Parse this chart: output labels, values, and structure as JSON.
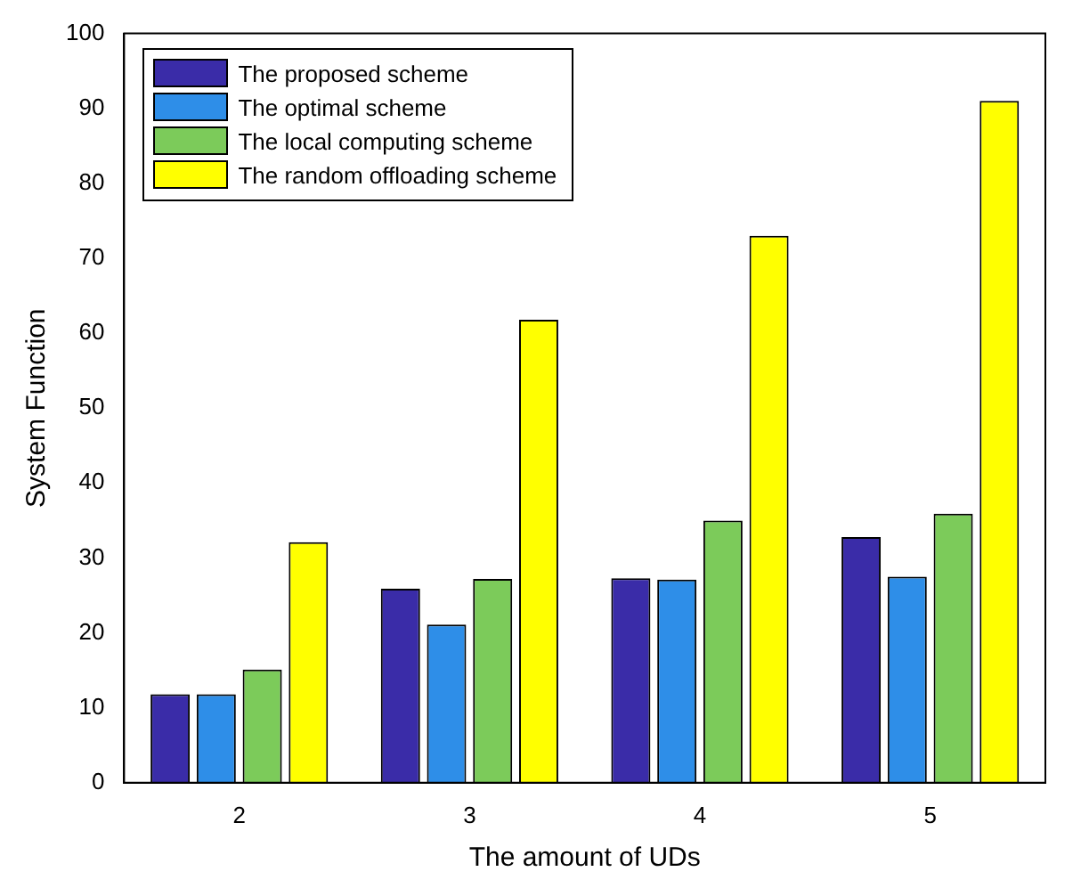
{
  "chart_data": {
    "type": "bar",
    "xlabel": "The amount of UDs",
    "ylabel": "System Function",
    "categories": [
      "2",
      "3",
      "4",
      "5"
    ],
    "series": [
      {
        "name": "The proposed scheme",
        "color": "#3a2ca8",
        "values": [
          11.8,
          25.9,
          27.3,
          32.8
        ]
      },
      {
        "name": "The optimal scheme",
        "color": "#2e8ee8",
        "values": [
          11.8,
          21.1,
          27.1,
          27.5
        ]
      },
      {
        "name": "The local computing scheme",
        "color": "#7ccb5a",
        "values": [
          15.1,
          27.2,
          35.0,
          35.9
        ]
      },
      {
        "name": "The random offloading scheme",
        "color": "#ffff00",
        "values": [
          32.1,
          61.8,
          73.0,
          91.0
        ]
      }
    ],
    "ylim": [
      0,
      100
    ],
    "yticks": [
      0,
      10,
      20,
      30,
      40,
      50,
      60,
      70,
      80,
      90,
      100
    ],
    "grid": false,
    "legend": "top left"
  }
}
